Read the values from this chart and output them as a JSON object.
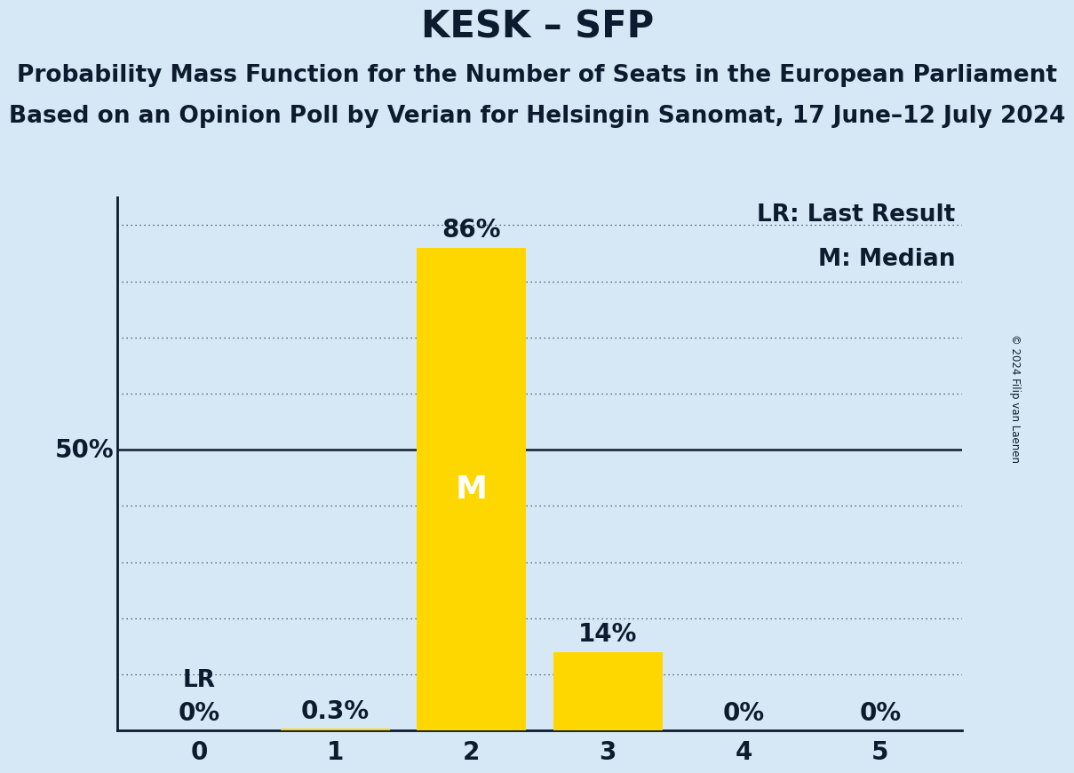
{
  "title": "KESK – SFP",
  "subtitle1": "Probability Mass Function for the Number of Seats in the European Parliament",
  "subtitle2": "Based on an Opinion Poll by Verian for Helsingin Sanomat, 17 June–12 July 2024",
  "copyright": "© 2024 Filip van Laenen",
  "categories": [
    0,
    1,
    2,
    3,
    4,
    5
  ],
  "values": [
    0.0,
    0.3,
    86.0,
    14.0,
    0.0,
    0.0
  ],
  "bar_color": "#FFD700",
  "background_color": "#D6E8F5",
  "text_color": "#0d1b2e",
  "bar_labels": [
    "0%",
    "0.3%",
    "86%",
    "14%",
    "0%",
    "0%"
  ],
  "median_bar": 2,
  "last_result_bar": 0,
  "ylim": [
    0,
    95
  ],
  "ylabel_50": "50%",
  "legend_lr": "LR: Last Result",
  "legend_m": "M: Median",
  "lr_label": "LR",
  "m_label": "M",
  "title_fontsize": 30,
  "subtitle_fontsize": 19,
  "tick_fontsize": 20,
  "label_fontsize": 20,
  "annotation_fontsize": 19,
  "dotted_grid_levels": [
    10,
    20,
    30,
    40,
    60,
    70,
    80,
    90
  ],
  "solid_grid_level": 50
}
